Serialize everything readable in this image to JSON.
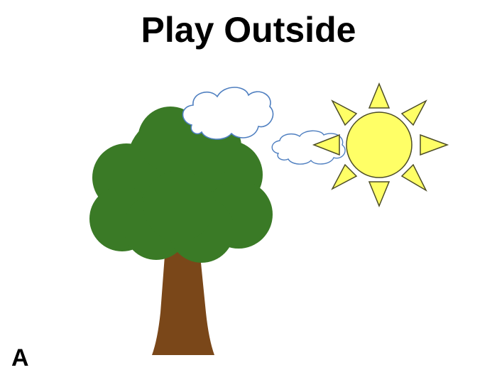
{
  "slide": {
    "title": "Play Outside",
    "corner_label": "A"
  },
  "colors": {
    "tree_canopy": "#3a7a26",
    "tree_trunk": "#7a4719",
    "sun_fill": "#ffff66",
    "sun_outline": "#4d4d26",
    "cloud_fill": "#ffffff",
    "cloud_outline": "#4f7fc0"
  },
  "icons": [
    "tree-icon",
    "sun-icon",
    "cloud-icon"
  ]
}
